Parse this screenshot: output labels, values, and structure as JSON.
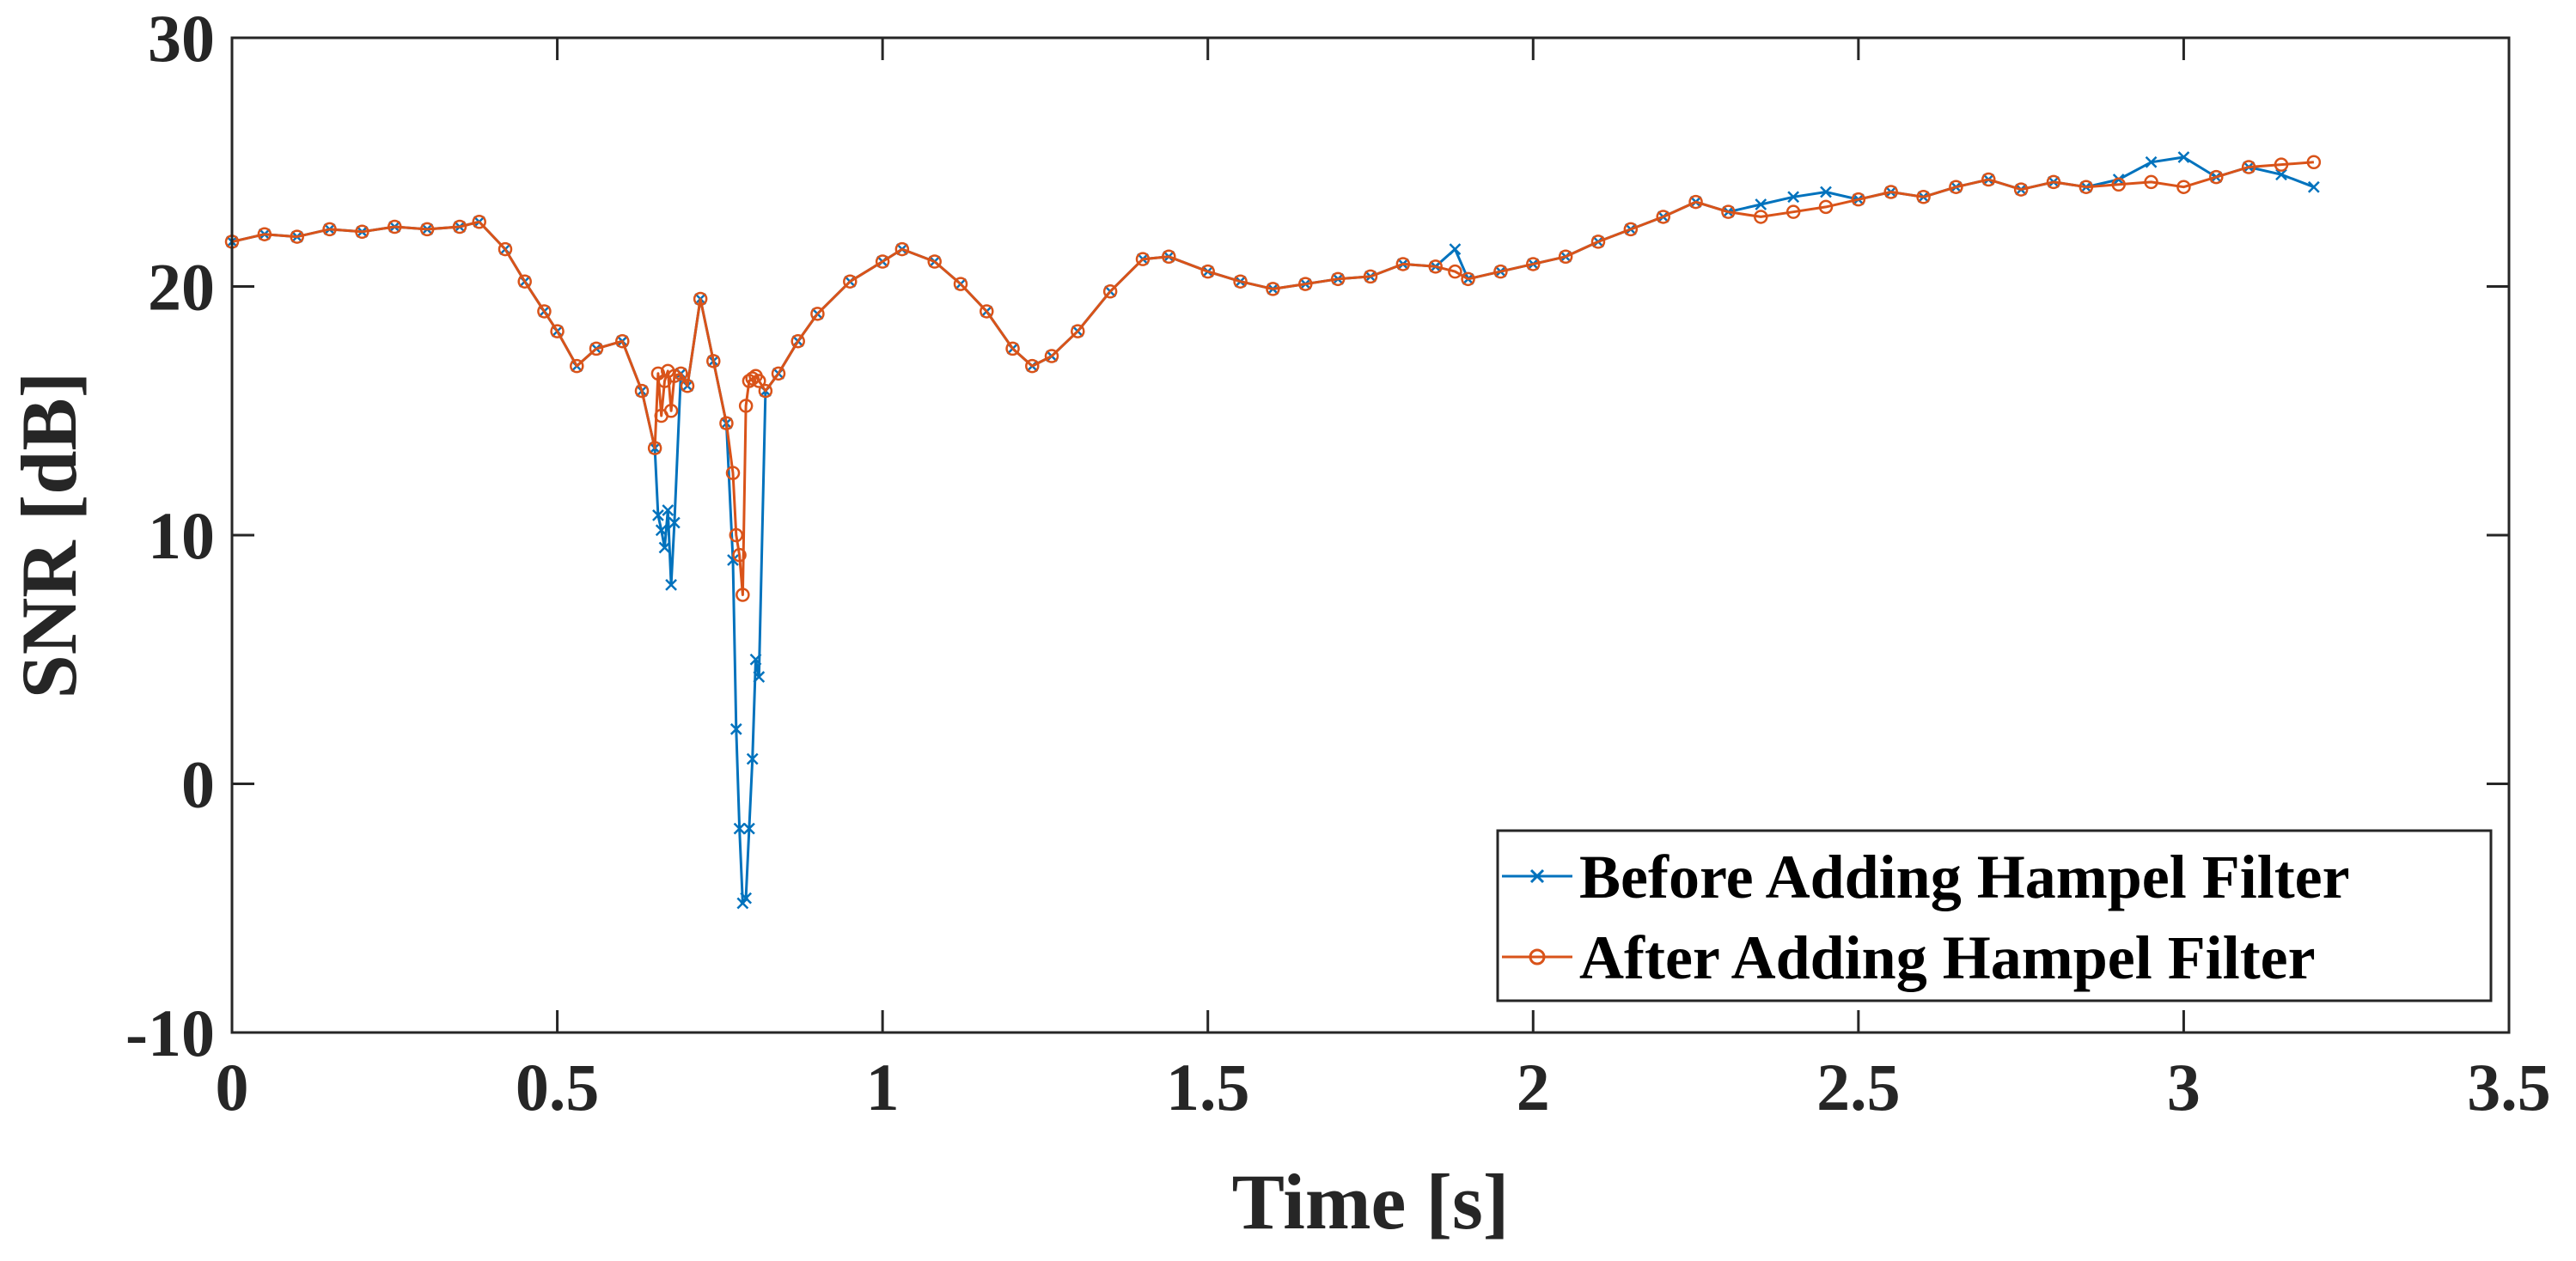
{
  "chart_data": {
    "type": "line",
    "title": "",
    "xlabel": "Time [s]",
    "ylabel": "SNR [dB]",
    "xlim": [
      0,
      3.5
    ],
    "ylim": [
      -10,
      30
    ],
    "xticks": [
      0,
      0.5,
      1,
      1.5,
      2,
      2.5,
      3,
      3.5
    ],
    "xtick_labels": [
      "0",
      "0.5",
      "1",
      "1.5",
      "2",
      "2.5",
      "3",
      "3.5"
    ],
    "yticks": [
      -10,
      0,
      10,
      20,
      30
    ],
    "ytick_labels": [
      "-10",
      "0",
      "10",
      "20",
      "30"
    ],
    "grid": false,
    "legend_location": "bottom-right",
    "series": [
      {
        "name": "Before Adding Hampel Filter",
        "color": "#0072BD",
        "marker": "x",
        "x": [
          0,
          0.05,
          0.1,
          0.15,
          0.2,
          0.25,
          0.3,
          0.35,
          0.38,
          0.42,
          0.45,
          0.48,
          0.5,
          0.53,
          0.56,
          0.6,
          0.63,
          0.65,
          0.655,
          0.66,
          0.665,
          0.67,
          0.675,
          0.68,
          0.69,
          0.7,
          0.72,
          0.74,
          0.76,
          0.77,
          0.775,
          0.78,
          0.785,
          0.79,
          0.795,
          0.8,
          0.805,
          0.81,
          0.82,
          0.84,
          0.87,
          0.9,
          0.95,
          1.0,
          1.03,
          1.08,
          1.12,
          1.16,
          1.2,
          1.23,
          1.26,
          1.3,
          1.35,
          1.4,
          1.44,
          1.5,
          1.55,
          1.6,
          1.65,
          1.7,
          1.75,
          1.8,
          1.85,
          1.88,
          1.9,
          1.95,
          2.0,
          2.05,
          2.1,
          2.15,
          2.2,
          2.25,
          2.3,
          2.35,
          2.4,
          2.45,
          2.5,
          2.55,
          2.6,
          2.65,
          2.7,
          2.75,
          2.8,
          2.85,
          2.9,
          2.95,
          3.0,
          3.05,
          3.1,
          3.15,
          3.2
        ],
        "y": [
          21.8,
          22.1,
          22.0,
          22.3,
          22.2,
          22.4,
          22.3,
          22.4,
          22.6,
          21.5,
          20.2,
          19.0,
          18.2,
          16.8,
          17.5,
          17.8,
          15.8,
          13.5,
          10.8,
          10.2,
          9.5,
          11.0,
          8.0,
          10.5,
          16.5,
          16.0,
          19.5,
          17.0,
          14.5,
          9.0,
          2.2,
          -1.8,
          -4.8,
          -4.6,
          -1.8,
          1.0,
          5.0,
          4.3,
          15.8,
          16.5,
          17.8,
          18.9,
          20.2,
          21.0,
          21.5,
          21.0,
          20.1,
          19.0,
          17.5,
          16.8,
          17.2,
          18.2,
          19.8,
          21.1,
          21.2,
          20.6,
          20.2,
          19.9,
          20.1,
          20.3,
          20.4,
          20.9,
          20.8,
          21.5,
          20.3,
          20.6,
          20.9,
          21.2,
          21.8,
          22.3,
          22.8,
          23.4,
          23.0,
          23.3,
          23.6,
          23.8,
          23.5,
          23.8,
          23.6,
          24.0,
          24.3,
          23.9,
          24.2,
          24.0,
          24.3,
          25.0,
          25.2,
          24.4,
          24.8,
          24.5,
          24.0
        ]
      },
      {
        "name": "After Adding Hampel Filter",
        "color": "#D95319",
        "marker": "o",
        "x": [
          0,
          0.05,
          0.1,
          0.15,
          0.2,
          0.25,
          0.3,
          0.35,
          0.38,
          0.42,
          0.45,
          0.48,
          0.5,
          0.53,
          0.56,
          0.6,
          0.63,
          0.65,
          0.655,
          0.66,
          0.665,
          0.67,
          0.675,
          0.68,
          0.69,
          0.7,
          0.72,
          0.74,
          0.76,
          0.77,
          0.775,
          0.78,
          0.785,
          0.79,
          0.795,
          0.8,
          0.805,
          0.81,
          0.82,
          0.84,
          0.87,
          0.9,
          0.95,
          1.0,
          1.03,
          1.08,
          1.12,
          1.16,
          1.2,
          1.23,
          1.26,
          1.3,
          1.35,
          1.4,
          1.44,
          1.5,
          1.55,
          1.6,
          1.65,
          1.7,
          1.75,
          1.8,
          1.85,
          1.88,
          1.9,
          1.95,
          2.0,
          2.05,
          2.1,
          2.15,
          2.2,
          2.25,
          2.3,
          2.35,
          2.4,
          2.45,
          2.5,
          2.55,
          2.6,
          2.65,
          2.7,
          2.75,
          2.8,
          2.85,
          2.9,
          2.95,
          3.0,
          3.05,
          3.1,
          3.15,
          3.2
        ],
        "y": [
          21.8,
          22.1,
          22.0,
          22.3,
          22.2,
          22.4,
          22.3,
          22.4,
          22.6,
          21.5,
          20.2,
          19.0,
          18.2,
          16.8,
          17.5,
          17.8,
          15.8,
          13.5,
          16.5,
          14.8,
          16.2,
          16.6,
          15.0,
          16.4,
          16.5,
          16.0,
          19.5,
          17.0,
          14.5,
          12.5,
          10.0,
          9.2,
          7.6,
          15.2,
          16.2,
          16.3,
          16.4,
          16.2,
          15.8,
          16.5,
          17.8,
          18.9,
          20.2,
          21.0,
          21.5,
          21.0,
          20.1,
          19.0,
          17.5,
          16.8,
          17.2,
          18.2,
          19.8,
          21.1,
          21.2,
          20.6,
          20.2,
          19.9,
          20.1,
          20.3,
          20.4,
          20.9,
          20.8,
          20.6,
          20.3,
          20.6,
          20.9,
          21.2,
          21.8,
          22.3,
          22.8,
          23.4,
          23.0,
          22.8,
          23.0,
          23.2,
          23.5,
          23.8,
          23.6,
          24.0,
          24.3,
          23.9,
          24.2,
          24.0,
          24.1,
          24.2,
          24.0,
          24.4,
          24.8,
          24.9,
          25.0
        ]
      }
    ]
  }
}
